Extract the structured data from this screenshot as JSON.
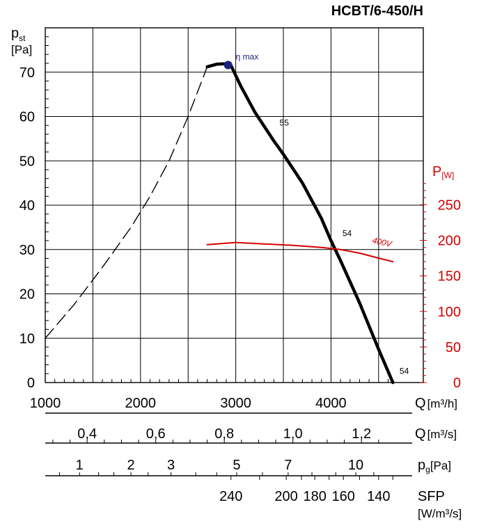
{
  "chart_data": {
    "type": "line",
    "title": "HCBT/6-450/H",
    "x_axis": {
      "label": "Q",
      "unit": "[m³/h]",
      "ticks": [
        1000,
        2000,
        3000,
        4000
      ],
      "tick_labels": [
        "1000",
        "2000",
        "3000",
        "4000"
      ],
      "range": [
        1000,
        4500
      ]
    },
    "y_axis_left": {
      "label": "p",
      "label_sub": "st",
      "unit": "[Pa]",
      "ticks": [
        0,
        10,
        20,
        30,
        40,
        50,
        60,
        70
      ],
      "tick_labels": [
        "0",
        "10",
        "20",
        "30",
        "40",
        "50",
        "60",
        "70"
      ],
      "range": [
        0,
        80
      ]
    },
    "y_axis_right": {
      "label": "P",
      "unit": "[W]",
      "color": "#d40000",
      "ticks": [
        0,
        50,
        100,
        150,
        200,
        250
      ],
      "tick_labels": [
        "0",
        "50",
        "100",
        "150",
        "200",
        "250"
      ],
      "range": [
        0,
        290
      ]
    },
    "secondary_scales": [
      {
        "label": "Q",
        "unit": "[m³/s]",
        "ticks": [
          0.4,
          0.6,
          0.8,
          1.0,
          1.2
        ],
        "tick_labels": [
          "0,4",
          "0,6",
          "0,8",
          "1,0",
          "1,2"
        ]
      },
      {
        "label": "p",
        "label_sub": "g",
        "unit": "[Pa]",
        "tick_labels": [
          "1",
          "2",
          "3",
          "5",
          "7",
          "10"
        ],
        "positions_q": [
          1360,
          1900,
          2320,
          3010,
          3550,
          4260
        ]
      },
      {
        "label": "SFP",
        "unit": "[W/m³/s]",
        "tick_labels": [
          "240",
          "200",
          "180",
          "160",
          "140"
        ],
        "positions_q": [
          2950,
          3530,
          3830,
          4130,
          4500
        ]
      }
    ],
    "series": [
      {
        "label": "pressure curve (solid)",
        "axis": "left",
        "color": "#000000",
        "x": [
          2700,
          2800,
          2900,
          2950,
          3050,
          3200,
          3400,
          3500,
          3700,
          3900,
          4000,
          4100,
          4300,
          4500,
          4650
        ],
        "y": [
          71.2,
          71.8,
          71.9,
          71.5,
          67.0,
          61.0,
          54.5,
          51.5,
          45.0,
          37.0,
          32.0,
          27.5,
          18.0,
          7.5,
          0
        ]
      },
      {
        "label": "pressure curve (dashed)",
        "axis": "left",
        "color": "#000000",
        "dashed": true,
        "x": [
          1000,
          1300,
          1600,
          1900,
          2100,
          2300,
          2500,
          2700
        ],
        "y": [
          10,
          17.5,
          26,
          35,
          42,
          50,
          60,
          71.2
        ]
      },
      {
        "label": "power 400V",
        "axis": "right",
        "color": "#d40000",
        "x": [
          2700,
          3000,
          3300,
          3600,
          3900,
          4100,
          4300,
          4500,
          4650
        ],
        "y": [
          194,
          197,
          195,
          193,
          190,
          187,
          182,
          175,
          170
        ]
      }
    ],
    "annotations": [
      {
        "text": "η max",
        "x": 2920,
        "y": 71.6,
        "marker": true,
        "color": "#1a237e"
      },
      {
        "text": "55",
        "x": 3460,
        "y": 58.0
      },
      {
        "text": "54",
        "x": 4120,
        "y": 33.0
      },
      {
        "text": "54",
        "x": 4720,
        "y": 2.0
      },
      {
        "text": "400V",
        "x": 4430,
        "y": 31.5,
        "color": "#d40000"
      }
    ],
    "grid": true
  }
}
